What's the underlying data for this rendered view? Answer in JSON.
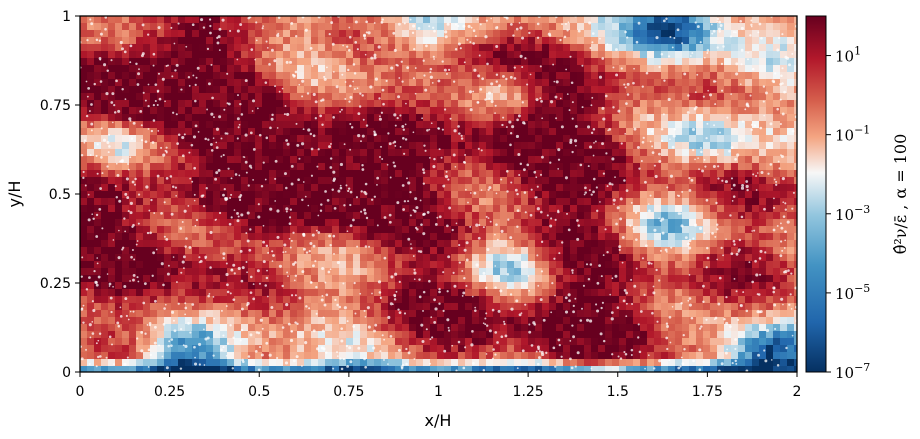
{
  "chart_data": {
    "type": "heatmap",
    "title": "",
    "xlabel": "x/H",
    "ylabel": "y/H",
    "xlim": [
      0,
      2
    ],
    "ylim": [
      0,
      1
    ],
    "x_ticks": [
      "0",
      "0.25",
      "0.5",
      "0.75",
      "1",
      "1.25",
      "1.5",
      "1.75",
      "2"
    ],
    "y_ticks": [
      "0",
      "0.25",
      "0.5",
      "0.75",
      "1"
    ],
    "colorbar": {
      "label_base": "θ̂²ν/ε̄ ,",
      "label_alpha": "α = 100",
      "scale": "log",
      "range": [
        1e-07,
        100
      ],
      "ticks": [
        {
          "value": 10,
          "base": "10",
          "exp": "1"
        },
        {
          "value": 0.1,
          "base": "10",
          "exp": "−1"
        },
        {
          "value": 0.001,
          "base": "10",
          "exp": "−3"
        },
        {
          "value": 1e-05,
          "base": "10",
          "exp": "−5"
        },
        {
          "value": 1e-07,
          "base": "10",
          "exp": "−7"
        }
      ],
      "colormap": [
        "#67001f",
        "#b2182b",
        "#d6604d",
        "#f4a582",
        "#f7f7f7",
        "#92c5de",
        "#4393c3",
        "#2166ac",
        "#053061"
      ]
    },
    "blobs": [
      {
        "x": 0.6,
        "y": 0.55,
        "v": 1.0
      },
      {
        "x": 0.35,
        "y": 0.78,
        "v": 0.9
      },
      {
        "x": 0.12,
        "y": 0.8,
        "v": 0.8
      },
      {
        "x": 0.9,
        "y": 0.5,
        "v": 0.6
      },
      {
        "x": 1.35,
        "y": 0.72,
        "v": 0.7
      },
      {
        "x": 1.4,
        "y": 0.5,
        "v": 0.6
      },
      {
        "x": 1.45,
        "y": 0.15,
        "v": 0.8
      },
      {
        "x": 1.05,
        "y": 0.18,
        "v": 0.7
      },
      {
        "x": 0.05,
        "y": 0.4,
        "v": 0.7
      },
      {
        "x": 1.1,
        "y": 0.8,
        "v": 0.6
      },
      {
        "x": 1.95,
        "y": 0.5,
        "v": 0.4
      },
      {
        "x": 1.85,
        "y": 0.25,
        "v": 0.3
      },
      {
        "x": 0.25,
        "y": 0.25,
        "v": 0.5
      }
    ],
    "cold_zones": [
      {
        "x": 1.65,
        "y": 0.97,
        "v": -0.8
      },
      {
        "x": 1.92,
        "y": 0.05,
        "v": -0.9
      },
      {
        "x": 1.2,
        "y": 0.3,
        "v": -0.5
      },
      {
        "x": 0.08,
        "y": 0.63,
        "v": -0.5
      },
      {
        "x": 1.2,
        "y": 0.78,
        "v": -0.5
      },
      {
        "x": 1.75,
        "y": 0.65,
        "v": -0.4
      },
      {
        "x": 0.3,
        "y": 0.05,
        "v": -0.6
      },
      {
        "x": 1.65,
        "y": 0.4,
        "v": -0.4
      },
      {
        "x": 0.95,
        "y": 0.95,
        "v": -0.3
      }
    ]
  }
}
